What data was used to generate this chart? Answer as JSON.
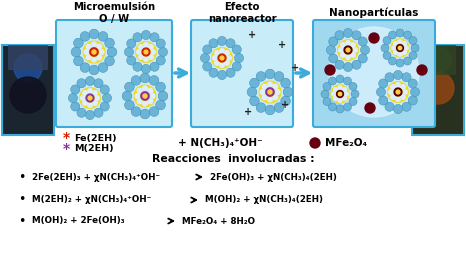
{
  "title_left": "Microemulsión\nO / W",
  "title_middle": "Efecto\nnanoreactor",
  "title_right": "Nanopartículas",
  "bg_color": "#ffffff",
  "box_fc": "#c8ecf8",
  "box_ec": "#3aacdc",
  "box3_fc": "#a0d8f0",
  "micelle_outer": "#6ab4d8",
  "micelle_outer_ec": "#3a84a8",
  "micelle_yellow": "#f0d820",
  "micelle_inner_dot": "#e8e8f8",
  "center_red": "#cc2200",
  "center_purple": "#883399",
  "center_dark": "#550000",
  "dot_mfe": "#660011",
  "arrow_color": "#3aacdc",
  "reaction_arrow": "#000000",
  "legend_red_color": "#cc2200",
  "legend_purple_color": "#883399",
  "legend_mfe_color": "#660011",
  "photo_left_fc": "#1a2530",
  "photo_left_ec": "#3aacdc",
  "photo_right_fc": "#283020",
  "photo_right_ec": "#3aacdc",
  "react_title": "Reacciones  involucradas :",
  "r1_left": "2Fe(2EH)₃ + χN(CH₃)₄⁺OH⁻",
  "r1_right": "2Fe(OH)₃ + χN(CH₃)₄(2EH)",
  "r2_left": "M(2EH)₂ + χN(CH₃)₄⁺OH⁻",
  "r2_right": "M(OH)₂ + χN(CH₃)₄(2EH)",
  "r3_left": "M(OH)₂ + 2Fe(OH)₃",
  "r3_right": "MFe₂O₄ + 8H₂O"
}
